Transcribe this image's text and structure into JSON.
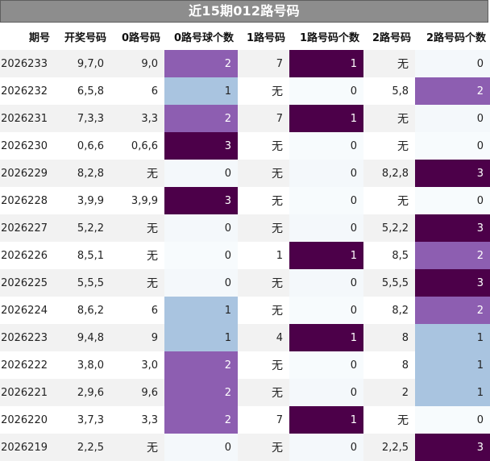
{
  "header": {
    "title": "近15期012路号码"
  },
  "table": {
    "columns": [
      "期号",
      "开奖号码",
      "0路号码",
      "0路号球个数",
      "1路号码",
      "1路号码个数",
      "2路号码",
      "2路号码个数"
    ],
    "rows": [
      [
        "2026233",
        "9,7,0",
        "9,0",
        "2",
        "7",
        "1",
        "无",
        "0"
      ],
      [
        "2026232",
        "6,5,8",
        "6",
        "1",
        "无",
        "0",
        "5,8",
        "2"
      ],
      [
        "2026231",
        "7,3,3",
        "3,3",
        "2",
        "7",
        "1",
        "无",
        "0"
      ],
      [
        "2026230",
        "0,6,6",
        "0,6,6",
        "3",
        "无",
        "0",
        "无",
        "0"
      ],
      [
        "2026229",
        "8,2,8",
        "无",
        "0",
        "无",
        "0",
        "8,2,8",
        "3"
      ],
      [
        "2026228",
        "3,9,9",
        "3,9,9",
        "3",
        "无",
        "0",
        "无",
        "0"
      ],
      [
        "2026227",
        "5,2,2",
        "无",
        "0",
        "无",
        "0",
        "5,2,2",
        "3"
      ],
      [
        "2026226",
        "8,5,1",
        "无",
        "0",
        "1",
        "1",
        "8,5",
        "2"
      ],
      [
        "2026225",
        "5,5,5",
        "无",
        "0",
        "无",
        "0",
        "5,5,5",
        "3"
      ],
      [
        "2026224",
        "8,6,2",
        "6",
        "1",
        "无",
        "0",
        "8,2",
        "2"
      ],
      [
        "2026223",
        "9,4,8",
        "9",
        "1",
        "4",
        "1",
        "8",
        "1"
      ],
      [
        "2026222",
        "3,8,0",
        "3,0",
        "2",
        "无",
        "0",
        "8",
        "1"
      ],
      [
        "2026221",
        "2,9,6",
        "9,6",
        "2",
        "无",
        "0",
        "2",
        "1"
      ],
      [
        "2026220",
        "3,7,3",
        "3,3",
        "2",
        "7",
        "1",
        "无",
        "0"
      ],
      [
        "2026219",
        "2,2,5",
        "无",
        "0",
        "无",
        "0",
        "2,2,5",
        "3"
      ]
    ]
  },
  "colors": {
    "count_1": "#a9c4e0",
    "count_1_alt_onecol": "#4c0049",
    "count_2": "#8d5eb1",
    "count_3": "#4c0049",
    "title_bg": "#8d8d8d"
  }
}
